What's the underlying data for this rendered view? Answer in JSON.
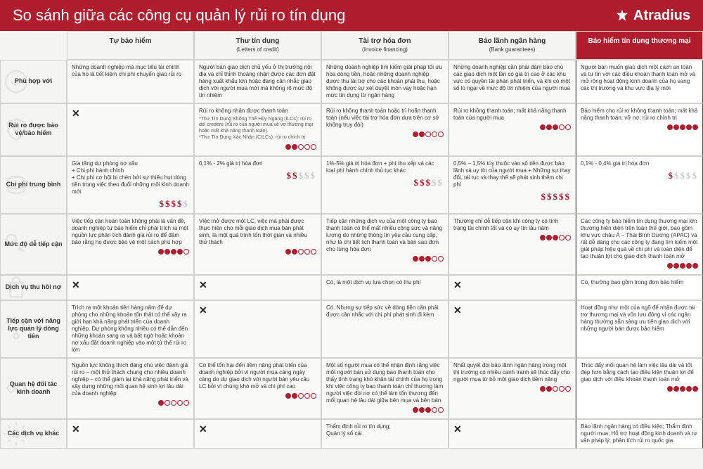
{
  "header": {
    "title": "So sánh giữa các công cụ quản lý rủi ro tín dụng",
    "brand": "Atradius"
  },
  "columns": [
    {
      "label": "Tự bảo hiểm"
    },
    {
      "label": "Thư tín dụng",
      "sub": "(Letters of credit)"
    },
    {
      "label": "Tài trợ hóa đơn",
      "sub": "(Invoice financing)"
    },
    {
      "label": "Bảo lãnh ngân hàng",
      "sub": "(Bank guarantees)"
    },
    {
      "label": "Bảo hiểm tín dụng thương mại",
      "highlight": true
    }
  ],
  "rows": [
    {
      "label": "Phù hợp với",
      "icon": "check"
    },
    {
      "label": "Rủi ro được bảo vệ/bảo hiểm",
      "icon": "shield"
    },
    {
      "label": "Chi phí trung bình",
      "icon": "coins"
    },
    {
      "label": "Mức độ dễ tiếp cận",
      "icon": "key"
    },
    {
      "label": "Dịch vụ thu hồi nợ",
      "icon": "bag"
    },
    {
      "label": "Tiếp cận với năng lực quản lý dòng tiền",
      "icon": "flow"
    },
    {
      "label": "Quan hệ đối tác kinh doanh",
      "icon": "handshake"
    },
    {
      "label": "Các dịch vụ khác",
      "icon": "gear"
    }
  ],
  "cells": [
    [
      {
        "text": "Những doanh nghiệp mà mục tiêu tài chính của họ là tiết kiệm chi phí chuyển giao rủi ro"
      },
      {
        "text": "Người bán giao dịch chủ yếu ở thị trường nội địa và chỉ thỉnh thoảng nhận được các đơn đặt hàng xuất khẩu lớn hoặc đang cân nhắc giao dịch với người mua mới mà không rõ mức độ tín nhiệm"
      },
      {
        "text": "Những doanh nghiệp tìm kiếm giải pháp tối ưu hóa dòng tiền, hoặc những doanh nghiệp được thụ tài trợ cho các khoản phải thu, hoặc không được sự xét duyệt mòn vay hoặc hạn mức tín dụng từ ngân hàng"
      },
      {
        "text": "Những doanh nghiệp cần phải đảm bảo cho các giao dịch một lần có giá trị cao ở các khu vực có quyền tài phán phát triển, và khi có một số lo ngại về mức độ tín nhiệm của người mua"
      },
      {
        "text": "Người bán muốn giao dịch một cách an toàn và tự tin với các điều khoản thanh toán mở và mở rộng hoạt động kinh doanh của họ sang các thị trường và khu vực địa lý mới"
      }
    ],
    [
      {
        "x": true
      },
      {
        "text": "Rủi ro không nhận được thanh toán",
        "extra": "*Thư Tín Dụng Không Thể Hủy Ngang (ILCs): rủi ro del credere (rủi ro của người mua về vợ thương mại hoặc mất khả năng thanh toán).\n*Thư Tín Dụng Xác Nhận (CILCs): rủi ro chính trị",
        "dots": 2
      },
      {
        "text": "Rủi ro không thanh toán hoặc trì hoãn thanh toán (nếu việc tài trợ hóa đơn dựa trên cơ sở không truy đòi)",
        "dots": 2
      },
      {
        "text": "Rủi ro không thanh toán; mất khả năng thanh toán của người mua",
        "dots": 3
      },
      {
        "text": "Bảo hiểm cho rủi ro không thanh toán; mất khả năng thanh toán; vỡ nợ; rủi ro chính trị",
        "dots": 5
      }
    ],
    [
      {
        "text": "Gia tăng dự phòng nợ xấu\n+ Chi phí hành chính\n+ Chi phí cơ hội bị chèn bởi sự thiếu hụt dòng tiền trong việc theo đuổi những mối kinh doanh mới",
        "dollars": 4
      },
      {
        "text": "0,1% - 2% giá trị hóa đơn",
        "dollars": 2
      },
      {
        "text": "1%-5% giá trị hóa đơn + phí thu xếp và các loại phí hành chính thủ tục khác",
        "dollars": 3
      },
      {
        "text": "0,5% – 1,5% tùy thuộc vào số tiền được bảo lãnh và uy tín của người mua + Những sự thay đổi, tái tục và thay thế sẽ phát sinh thêm chi phí",
        "dollars": 5
      },
      {
        "text": "0,1% - 0,4% giá trị hóa đơn",
        "dollars": 1
      }
    ],
    [
      {
        "text": "Việc tiếp cận hoàn toàn không phải là vấn đề, doanh nghiệp tự bảo hiểm chỉ phải trích ra một nguồn lực phân tích đánh giá rủi ro để đảm bảo rằng họ được bảo vệ một cách phù hợp",
        "dots": 4
      },
      {
        "text": "Việc mở được một LC, việc mà phải được thực hiện cho mỗi giao dịch mua bán phát sinh, là một quá trình tốn thời gian và nhiều thử thách",
        "dots": 2
      },
      {
        "text": "Tiếp cận những dịch vụ của một công ty bao thanh toán có thể mất nhiều công sức và năng lượng do những thông tin yêu cầu cung cấp, như là chi tiết lịch thanh toán và bản sao đơn cho từng hóa đơn",
        "dots": 3
      },
      {
        "text": "Thường chỉ dễ tiếp cận khi công ty có tình trạng tài chính tốt và có uy tín lâu năm",
        "dots": 3
      },
      {
        "text": "Các công ty bảo hiểm tín dụng thương mại lớn thường hiện diện trên toàn thế giới, bao gồm khu vực châu Á – Thái Bình Dương (APAC) và rất dễ dàng cho các công ty đang tìm kiếm một giải pháp hiệu quả về chi phí và toàn diện để tạo thuận lợi cho giao dịch thanh toán mở",
        "dots": 5
      }
    ],
    [
      {
        "x": true
      },
      {
        "x": true
      },
      {
        "text": "Có, là một dịch vụ lựa chọn có thu phí"
      },
      {
        "x": true
      },
      {
        "text": "Có, thường bao gồm trong đơn bảo hiểm"
      }
    ],
    [
      {
        "text": "Trích ra một khoản tiền hàng năm để dự phòng cho những khoản tổn thất có thể xây ra giới hạn khả năng phát triển của doanh nghiệp. Dự phòng không nhiều có thể dẫn đến những khoản sang ra và bất ngờ hoặc khoản nợ xấu đặt doanh nghiệp vào một tử thế rủi ro lớn"
      },
      {
        "x": true
      },
      {
        "text": "Có. Nhưng sự tiếp sức về dòng tiền cần phải được cân nhắc với chi phí phát sinh đi kèm"
      },
      {
        "x": true
      },
      {
        "text": "Hoạt động như một của ngõ để nhận được tài trợ thương mại và vốn lưu động vì các ngân hàng thường sẵn sàng ưu tiên giao dịch với những người bán được bảo hiểm"
      }
    ],
    [
      {
        "text": "Nguồn lực không thích đáng cho việc đánh giá rủi ro – một thử thách chung cho nhiều doanh nghiệp – có thể giảm lại khả năng phát triển và xây dựng những mối quan hệ sinh lợi lâu dài của doanh nghiệp",
        "dots": 1
      },
      {
        "text": "Có thể tổn hại đến tiềm năng phát triển của doanh nghiệp bởi vì người mua càng ngày càng do dự giao dịch với người bán yêu cầu LC bởi vì chúng khó mở và chi phí cao",
        "dots": 2
      },
      {
        "text": "Một số người mua có thể nhận định rằng việc một người bán sử dụng bao thanh toán cho thấy tình trạng khó khăn tài chính của họ trong khi việc công ty bao thanh toán chỉ thương làm người việc đòi nợ có thể làm tổn thương đến mối quan hệ lâu dài giữa bên mua và bên bán",
        "dots": 3
      },
      {
        "text": "Nhất quyết đòi bảo lãnh ngân hàng trong một thị trường có nhiều cạnh tranh sẽ thúc đẩy cho người mua từ bỏ một giao dịch tiềm năng",
        "dots": 2
      },
      {
        "text": "Thúc đẩy mối quan hệ làm việc lâu dài và tốt đẹp hơn bằng cách tạo điều kiện thuận lợi để giao dịch với điều khoản thanh toán mở",
        "dots": 5
      }
    ],
    [
      {
        "x": true
      },
      {
        "x": true
      },
      {
        "text": "Thẩm định rủi ro tín dụng;\nQuản lý sổ cái"
      },
      {
        "x": true
      },
      {
        "text": "Bảo lãnh ngân hàng có điều kiện; Thẩm định người mua; Hỗ trợ hoạt động kinh doanh và tư vấn pháp lý; phân tích rủi ro quốc gia"
      }
    ]
  ]
}
